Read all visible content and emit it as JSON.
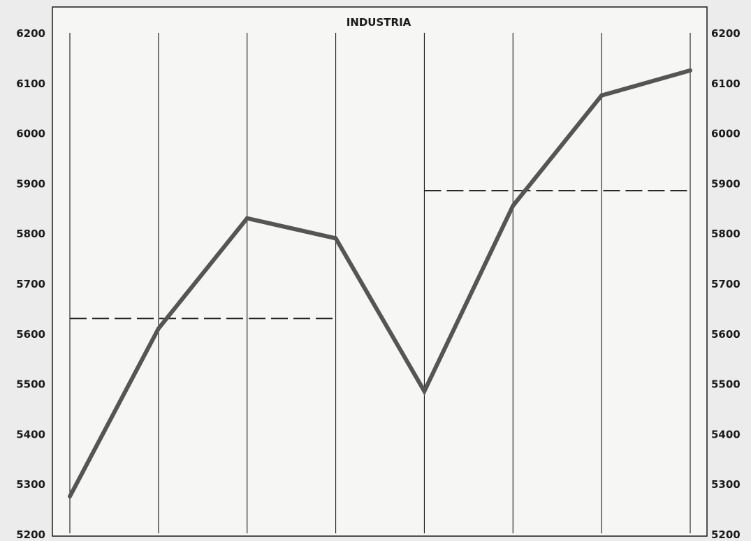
{
  "chart_data": {
    "type": "line",
    "title": "INDUSTRIA",
    "xlabel": "",
    "ylabel": "",
    "ylim": [
      5200,
      6200
    ],
    "yticks": [
      "5200",
      "5300",
      "5400",
      "5500",
      "5600",
      "5700",
      "5800",
      "5900",
      "6000",
      "6100",
      "6200"
    ],
    "grid": "vertical",
    "x": [
      1,
      2,
      3,
      4,
      5,
      6,
      7,
      8
    ],
    "series": [
      {
        "values": [
          5275,
          5610,
          5830,
          5790,
          5485,
          5855,
          6075,
          6125
        ]
      }
    ],
    "reference_lines": [
      {
        "value": 5630,
        "from_x": 1,
        "to_x": 4,
        "style": "dashed"
      },
      {
        "value": 5885,
        "from_x": 5,
        "to_x": 8,
        "style": "dashed"
      }
    ],
    "colors": {
      "series": "#555555",
      "grid": "#1a1a1a",
      "reference": "#1a1a1a",
      "background": "#f6f6f4"
    }
  }
}
